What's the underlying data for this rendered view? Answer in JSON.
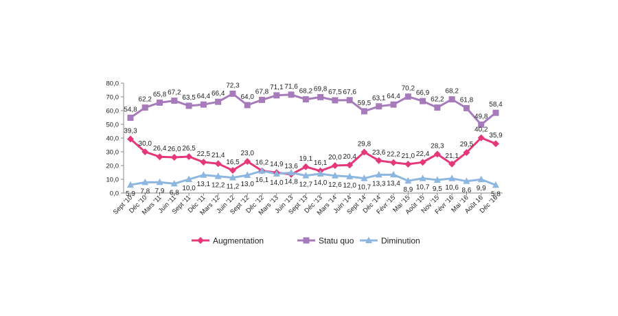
{
  "chart_data": {
    "type": "line",
    "categories": [
      "Sept '10",
      "Déc '10",
      "Mars '11",
      "Juin '11",
      "Sept '11",
      "Déc '11",
      "Mars '12",
      "Juin '12",
      "Sept '12",
      "Déc '12",
      "Mars '13",
      "Juin '13",
      "Sept '13",
      "Déc '13",
      "Mars '14",
      "Juin '14",
      "Sept '14",
      "Déc '14",
      "Févr '15",
      "Mai '15",
      "Août '15",
      "Nov '15",
      "Févr '16",
      "Mai '16",
      "Août 16",
      "Déc '16"
    ],
    "ylim": [
      0,
      80
    ],
    "yticks": [
      "0,0",
      "10,0",
      "20,0",
      "30,0",
      "40,0",
      "50,0",
      "60,0",
      "70,0",
      "80,0"
    ],
    "grid": false,
    "legend_position": "bottom",
    "series": [
      {
        "name": "Augmentation",
        "color": "#e6377a",
        "marker": "diamond",
        "values": [
          39.3,
          30.0,
          26.4,
          26.0,
          26.5,
          22.5,
          21.4,
          16.5,
          23.0,
          16.2,
          14.9,
          13.6,
          19.1,
          16.1,
          20.0,
          20.4,
          29.8,
          23.6,
          22.2,
          21.0,
          22.4,
          28.3,
          21.1,
          29.5,
          40.2,
          35.9
        ],
        "labels": [
          "39,3",
          "30,0",
          "26,4",
          "26,0",
          "26,5",
          "22,5",
          "21,4",
          "16,5",
          "23,0",
          "16,2",
          "14,9",
          "13,6",
          "19,1",
          "16,1",
          "20,0",
          "20,4",
          "29,8",
          "23,6",
          "22,2",
          "21,0",
          "22,4",
          "28,3",
          "21,1",
          "29,5",
          "40,2",
          "35,9"
        ]
      },
      {
        "name": "Statu quo",
        "color": "#a77bbb",
        "marker": "square",
        "values": [
          54.8,
          62.2,
          65.8,
          67.2,
          63.5,
          64.4,
          66.4,
          72.3,
          64.0,
          67.8,
          71.1,
          71.6,
          68.2,
          69.8,
          67.5,
          67.6,
          59.5,
          63.1,
          64.4,
          70.2,
          66.9,
          62.2,
          68.2,
          61.8,
          49.8,
          58.4
        ],
        "labels": [
          "54,8",
          "62,2",
          "65,8",
          "67,2",
          "63,5",
          "64,4",
          "66,4",
          "72,3",
          "64,0",
          "67,8",
          "71,1",
          "71,6",
          "68,2",
          "69,8",
          "67,5",
          "67,6",
          "59,5",
          "63,1",
          "64,4",
          "70,2",
          "66,9",
          "62,2",
          "68,2",
          "61,8",
          "49,8",
          "58,4"
        ]
      },
      {
        "name": "Diminution",
        "color": "#8db6e0",
        "marker": "triangle",
        "values": [
          5.9,
          7.8,
          7.9,
          6.8,
          10.0,
          13.1,
          12.2,
          11.2,
          13.0,
          16.1,
          14.0,
          14.8,
          12.7,
          14.0,
          12.6,
          12.0,
          10.7,
          13.3,
          13.4,
          8.9,
          10.7,
          9.5,
          10.6,
          8.6,
          9.9,
          5.8
        ],
        "labels": [
          "5,9",
          "7,8",
          "7,9",
          "6,8",
          "10,0",
          "13,1",
          "12,2",
          "11,2",
          "13,0",
          "16,1",
          "14,0",
          "14,8",
          "12,7",
          "14,0",
          "12,6",
          "12,0",
          "10,7",
          "13,3",
          "13,4",
          "8,9",
          "10,7",
          "9,5",
          "10,6",
          "8,6",
          "9,9",
          "5,8"
        ]
      }
    ]
  }
}
